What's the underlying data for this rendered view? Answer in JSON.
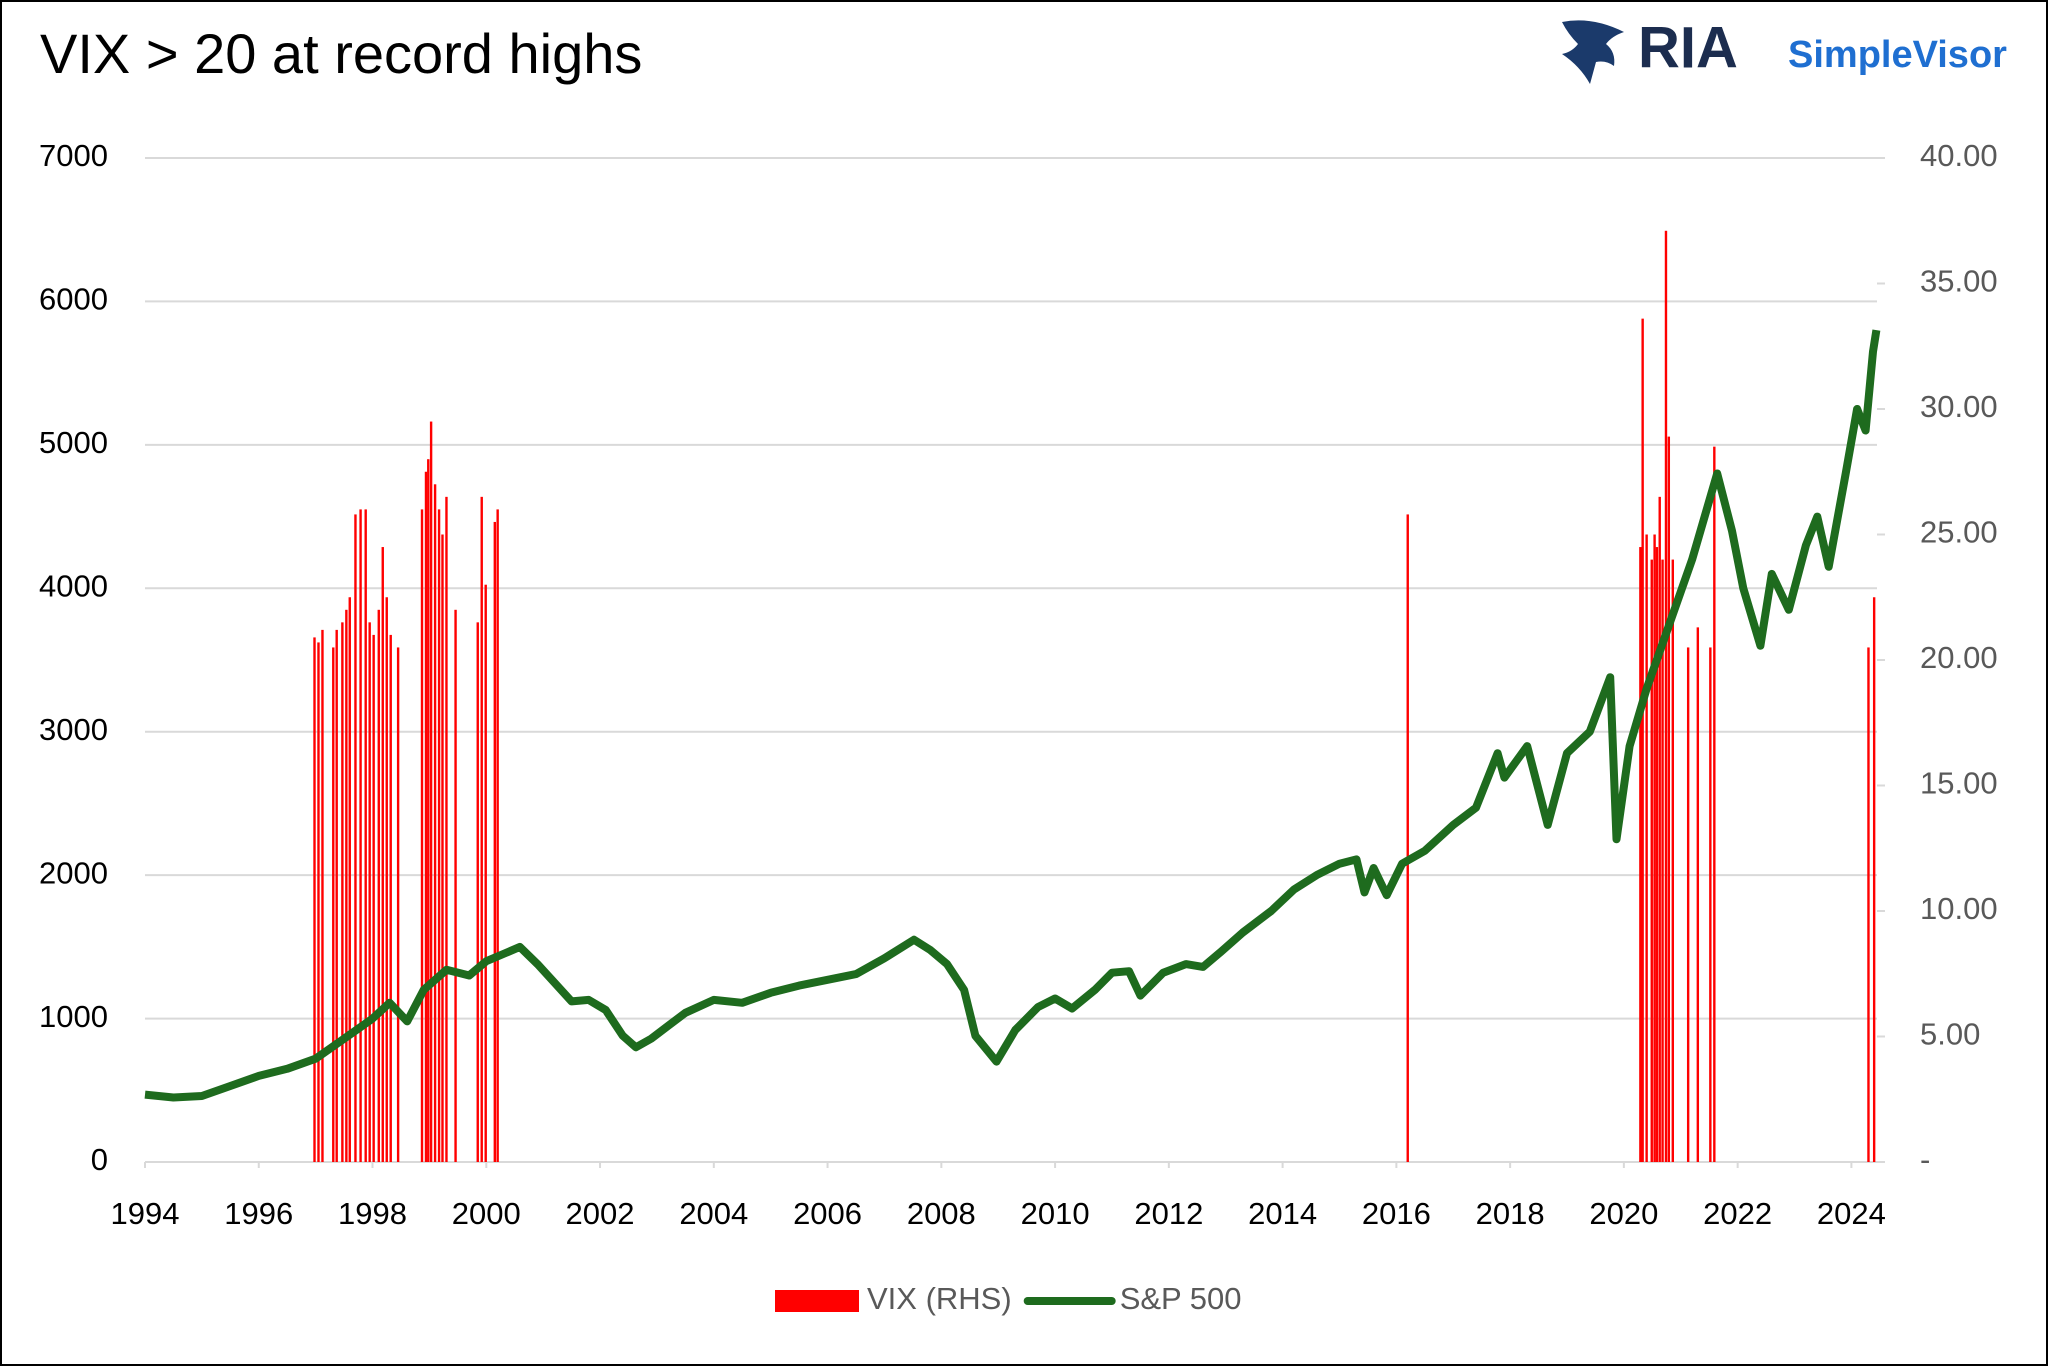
{
  "chart_data": {
    "type": "combo",
    "title": "VIX > 20 at record highs",
    "logo": {
      "name": "RIA",
      "product": "SimpleVisor"
    },
    "xlim": [
      1994,
      2024.45
    ],
    "xticks": [
      1994,
      1996,
      1998,
      2000,
      2002,
      2004,
      2006,
      2008,
      2010,
      2012,
      2014,
      2016,
      2018,
      2020,
      2022,
      2024
    ],
    "ylim": [
      0,
      7000
    ],
    "yticks": [
      0,
      1000,
      2000,
      3000,
      4000,
      5000,
      6000,
      7000
    ],
    "y2lim": [
      0,
      40
    ],
    "y2ticks": [
      {
        "value": 0,
        "label": "-"
      },
      {
        "value": 5,
        "label": "5.00"
      },
      {
        "value": 10,
        "label": "10.00"
      },
      {
        "value": 15,
        "label": "15.00"
      },
      {
        "value": 20,
        "label": "20.00"
      },
      {
        "value": 25,
        "label": "25.00"
      },
      {
        "value": 30,
        "label": "30.00"
      },
      {
        "value": 35,
        "label": "35.00"
      },
      {
        "value": 40,
        "label": "40.00"
      }
    ],
    "grid": true,
    "legend": "bottom",
    "series": [
      {
        "name": "VIX (RHS)",
        "type": "bar",
        "axis": "y2",
        "color": "#ff0000",
        "x": [
          1996.98,
          1997.05,
          1997.12,
          1997.31,
          1997.37,
          1997.47,
          1997.54,
          1997.6,
          1997.7,
          1997.79,
          1997.88,
          1997.95,
          1998.02,
          1998.11,
          1998.18,
          1998.25,
          1998.32,
          1998.45,
          1998.87,
          1998.94,
          1998.98,
          1999.03,
          1999.1,
          1999.17,
          1999.23,
          1999.3,
          1999.46,
          1999.85,
          1999.92,
          1999.99,
          2000.15,
          2000.2,
          2016.2,
          2020.29,
          2020.33,
          2020.4,
          2020.49,
          2020.54,
          2020.58,
          2020.63,
          2020.68,
          2020.74,
          2020.79,
          2020.86,
          2021.13,
          2021.3,
          2021.52,
          2021.59,
          2024.3,
          2024.4
        ],
        "values": [
          20.9,
          20.7,
          21.2,
          20.5,
          21.2,
          21.5,
          22.0,
          22.5,
          25.8,
          26.0,
          26.0,
          21.5,
          21.0,
          22.0,
          24.5,
          22.5,
          21.0,
          20.5,
          26.0,
          27.5,
          28.0,
          29.5,
          27.0,
          26.0,
          25.0,
          26.5,
          22.0,
          21.5,
          26.5,
          23.0,
          25.5,
          26.0,
          25.8,
          24.5,
          33.6,
          25.0,
          24.0,
          25.0,
          24.5,
          26.5,
          24.0,
          37.1,
          28.9,
          24.0,
          20.5,
          21.3,
          20.5,
          28.5,
          20.5,
          22.5
        ]
      },
      {
        "name": "S&P 500",
        "type": "line",
        "axis": "y",
        "color": "#1e6b1e",
        "x": [
          1994.0,
          1994.5,
          1995.0,
          1995.5,
          1996.0,
          1996.5,
          1997.0,
          1997.5,
          1998.0,
          1998.3,
          1998.61,
          1998.9,
          1999.3,
          1999.7,
          2000.0,
          2000.3,
          2000.59,
          2000.9,
          2001.2,
          2001.5,
          2001.8,
          2002.1,
          2002.4,
          2002.63,
          2002.9,
          2003.2,
          2003.5,
          2004.0,
          2004.5,
          2005.0,
          2005.5,
          2006.0,
          2006.5,
          2007.0,
          2007.52,
          2007.8,
          2008.1,
          2008.4,
          2008.6,
          2008.97,
          2009.3,
          2009.7,
          2010.0,
          2010.3,
          2010.7,
          2011.0,
          2011.3,
          2011.5,
          2011.9,
          2012.3,
          2012.6,
          2012.9,
          2013.3,
          2013.8,
          2014.2,
          2014.6,
          2015.0,
          2015.3,
          2015.44,
          2015.6,
          2015.83,
          2016.1,
          2016.5,
          2017.0,
          2017.4,
          2017.78,
          2017.9,
          2018.3,
          2018.66,
          2019.0,
          2019.4,
          2019.76,
          2019.87,
          2020.1,
          2020.4,
          2020.8,
          2021.2,
          2021.64,
          2021.9,
          2022.1,
          2022.4,
          2022.6,
          2022.9,
          2023.2,
          2023.4,
          2023.6,
          2023.9,
          2024.1,
          2024.25,
          2024.38,
          2024.44
        ],
        "values": [
          470,
          450,
          460,
          530,
          600,
          650,
          720,
          860,
          1000,
          1110,
          980,
          1200,
          1340,
          1300,
          1400,
          1450,
          1500,
          1380,
          1250,
          1120,
          1130,
          1060,
          880,
          800,
          860,
          950,
          1040,
          1130,
          1110,
          1180,
          1230,
          1270,
          1310,
          1420,
          1550,
          1480,
          1380,
          1200,
          880,
          700,
          920,
          1080,
          1140,
          1070,
          1200,
          1320,
          1330,
          1160,
          1320,
          1380,
          1360,
          1460,
          1600,
          1750,
          1900,
          2000,
          2080,
          2110,
          1880,
          2050,
          1860,
          2080,
          2170,
          2350,
          2470,
          2850,
          2680,
          2900,
          2350,
          2850,
          3000,
          3380,
          2250,
          2900,
          3300,
          3750,
          4200,
          4800,
          4400,
          4000,
          3600,
          4100,
          3850,
          4300,
          4500,
          4150,
          4800,
          5250,
          5100,
          5650,
          5800
        ]
      }
    ]
  }
}
